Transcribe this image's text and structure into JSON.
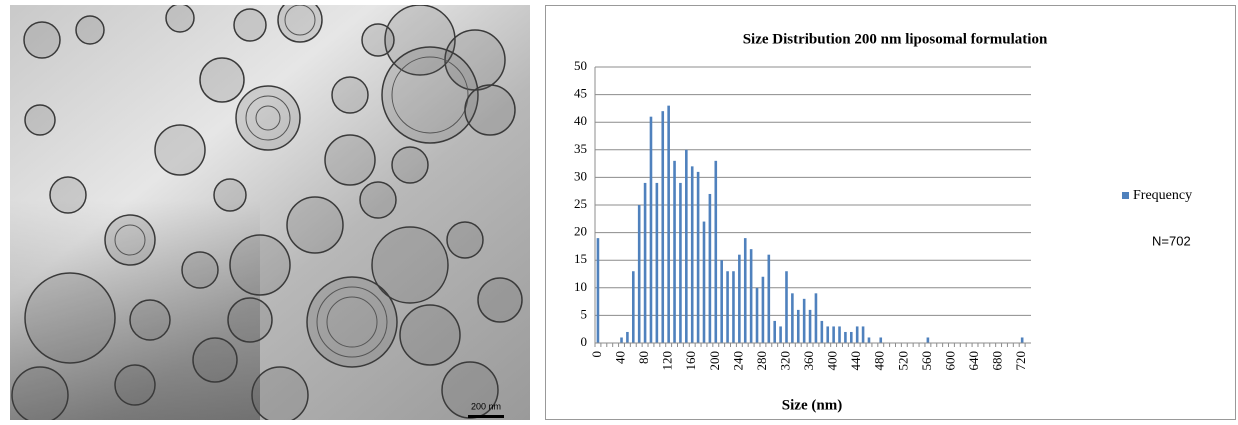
{
  "micrograph": {
    "scale_bar": "200 nm"
  },
  "chart_data": {
    "type": "bar",
    "title": "Size Distribution 200 nm liposomal formulation",
    "x_label": "Size (nm)",
    "categories": [
      0,
      null,
      null,
      null,
      40,
      null,
      null,
      null,
      80,
      null,
      null,
      null,
      120,
      null,
      null,
      null,
      160,
      null,
      null,
      null,
      200,
      null,
      null,
      null,
      240,
      null,
      null,
      null,
      280,
      null,
      null,
      null,
      320,
      null,
      null,
      null,
      360,
      null,
      null,
      null,
      400,
      null,
      null,
      null,
      440,
      null,
      null,
      null,
      480,
      null,
      null,
      null,
      520,
      null,
      null,
      null,
      560,
      null,
      null,
      null,
      600,
      null,
      null,
      null,
      640,
      null,
      null,
      null,
      680,
      null,
      null,
      null,
      720,
      null
    ],
    "series": [
      {
        "name": "Frequency",
        "color": "#4f81bd",
        "values": [
          19,
          0,
          0,
          0,
          1,
          2,
          13,
          25,
          29,
          41,
          29,
          42,
          43,
          33,
          29,
          35,
          32,
          31,
          22,
          27,
          33,
          15,
          13,
          13,
          16,
          19,
          17,
          10,
          12,
          16,
          4,
          3,
          13,
          9,
          6,
          8,
          6,
          9,
          4,
          3,
          3,
          3,
          2,
          2,
          3,
          3,
          1,
          0,
          1,
          0,
          0,
          0,
          0,
          0,
          0,
          0,
          1,
          0,
          0,
          0,
          0,
          0,
          0,
          0,
          0,
          0,
          0,
          0,
          0,
          0,
          0,
          0,
          1,
          0
        ]
      }
    ],
    "ylim": [
      0,
      50
    ],
    "yticks": [
      0,
      5,
      10,
      15,
      20,
      25,
      30,
      35,
      40,
      45,
      50
    ],
    "grid": true,
    "legend": "right",
    "annotation": "N=702"
  }
}
